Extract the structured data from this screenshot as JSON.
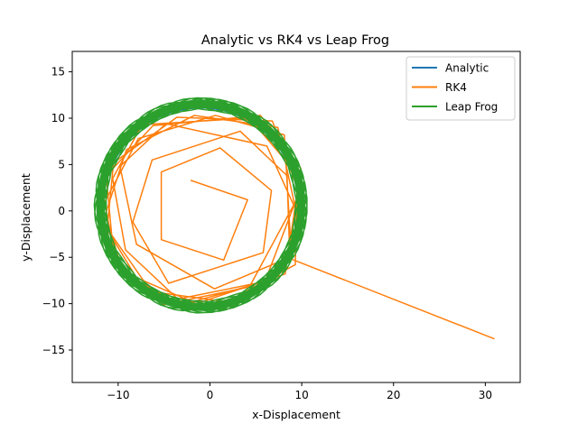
{
  "chart_data": {
    "type": "line",
    "title": "Analytic vs RK4 vs Leap Frog",
    "xlabel": "x-Displacement",
    "ylabel": "y-Displacement",
    "xlim": [
      -15,
      33.8
    ],
    "ylim": [
      -18.5,
      17.2
    ],
    "xticks": [
      -10,
      0,
      10,
      20,
      30
    ],
    "yticks": [
      -15,
      -10,
      -5,
      0,
      5,
      10,
      15
    ],
    "grid": false,
    "legend_position": "upper right",
    "series": [
      {
        "name": "Analytic",
        "color": "#1f77b4",
        "shape": "circle",
        "center": [
          -1,
          0.5
        ],
        "radius": 10.6,
        "points": 360
      },
      {
        "name": "RK4",
        "color": "#ff7f0e",
        "x": [
          -2.1,
          4.1,
          1.5,
          -5.3,
          -5.3,
          1.1,
          6.7,
          5.8,
          -4.5,
          -8.4,
          -6.3,
          3.3,
          8.4,
          8.7,
          0.5,
          -8.0,
          -9.8,
          -4.8,
          6.2,
          10.1,
          7.1,
          -3.5,
          -9.2,
          -10.6,
          -7.4,
          4.3,
          9.5,
          9.3,
          1.8,
          -6.4,
          -10.7,
          -11.3,
          -6.2,
          5.5,
          9.9,
          8.2,
          -1.5,
          -8.0,
          -11.2,
          -10.5,
          -3.6,
          6.8,
          9.7,
          6.0,
          -3.3,
          -9.5,
          -11.4,
          -9.1,
          -1.7,
          7.4,
          9.2,
          4.3,
          -5.0,
          -10.2,
          -11.5,
          -7.8,
          0.6,
          8.1,
          8.9,
          31.0
        ],
        "y": [
          3.3,
          1.2,
          -5.3,
          -3.1,
          4.2,
          6.8,
          2.2,
          -4.5,
          -7.8,
          -1.2,
          5.5,
          8.6,
          3.8,
          -5.0,
          -8.4,
          -3.6,
          4.8,
          9.4,
          7.0,
          -1.5,
          -7.4,
          -9.5,
          -4.2,
          3.5,
          9.3,
          10.0,
          4.0,
          -5.8,
          -9.8,
          -8.7,
          -2.6,
          3.8,
          9.2,
          10.3,
          4.6,
          -6.8,
          -10.0,
          -7.2,
          -2.0,
          5.2,
          10.1,
          9.7,
          2.0,
          -7.6,
          -10.2,
          -6.5,
          -0.4,
          6.6,
          10.3,
          9.0,
          0.8,
          -8.2,
          -10.1,
          -5.3,
          0.9,
          7.8,
          10.3,
          8.2,
          -5.2,
          -13.8
        ]
      },
      {
        "name": "Leap Frog",
        "color": "#2ca02c",
        "shape": "thick-ring",
        "center": [
          -1,
          0.6
        ],
        "radius_min": 10.3,
        "radius_max": 11.6,
        "points": 720
      }
    ]
  }
}
